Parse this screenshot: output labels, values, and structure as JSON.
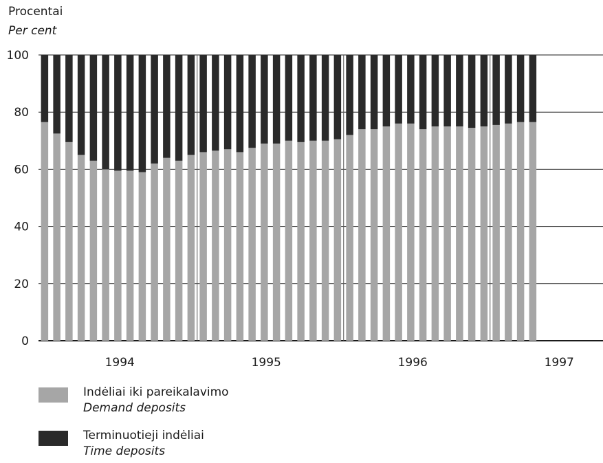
{
  "chart_data": {
    "type": "bar",
    "stacked": true,
    "ylabel_lt": "Procentai",
    "ylabel_en": "Per cent",
    "yticks": [
      "0",
      "20",
      "40",
      "60",
      "80",
      "100"
    ],
    "ylim": [
      0,
      100
    ],
    "grid": true,
    "year_labels": [
      "1994",
      "1995",
      "1996",
      "1997"
    ],
    "x_start": "1993-12",
    "x_end": "1997-05",
    "colors": {
      "demand": "#a6a6a6",
      "time": "#2a2a2a",
      "grid": "#1a1a1a"
    },
    "series": [
      {
        "name": "Indėliai iki pareikalavimo / Demand deposits",
        "values": [
          76.5,
          72.5,
          69.5,
          65,
          63,
          60,
          59.5,
          59.5,
          59,
          62,
          64,
          63,
          65,
          66,
          66.5,
          67,
          66,
          67.5,
          69,
          69,
          70,
          69.5,
          70,
          70,
          70.5,
          72,
          74,
          74,
          75,
          76,
          76,
          74,
          75,
          75,
          75,
          74.5,
          75,
          75.5,
          76,
          76.5,
          76.5
        ]
      },
      {
        "name": "Terminuotieji indėliai / Time deposits",
        "values": [
          23.5,
          27.5,
          30.5,
          35,
          37,
          40,
          40.5,
          40.5,
          41,
          38,
          36,
          37,
          35,
          34,
          33.5,
          33,
          34,
          32.5,
          31,
          31,
          30,
          30.5,
          30,
          30,
          29.5,
          28,
          26,
          26,
          25,
          24,
          24,
          26,
          25,
          25,
          25,
          25.5,
          25,
          24.5,
          24,
          23.5,
          23.5
        ]
      }
    ],
    "legend": [
      {
        "lt": "Indėliai iki pareikalavimo",
        "en": "Demand deposits"
      },
      {
        "lt": "Terminuotieji indėliai",
        "en": "Time deposits"
      }
    ]
  }
}
